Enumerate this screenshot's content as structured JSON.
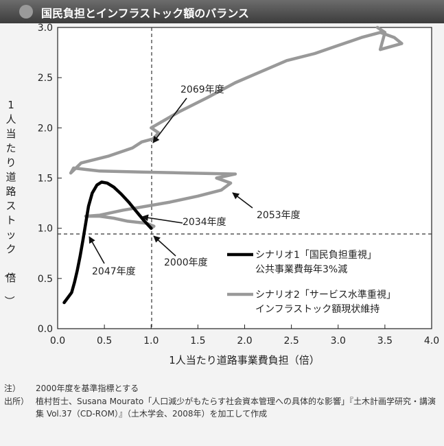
{
  "header": {
    "title": "国民負担とインフラストック額のバランス"
  },
  "chart_data": {
    "type": "line",
    "xlabel": "1人当たり道路事業費負担（倍）",
    "ylabel": "1人当たり道路ストック（倍）",
    "xlim": [
      0.0,
      4.0
    ],
    "ylim": [
      0.0,
      3.0
    ],
    "xticks": [
      "0.0",
      "0.5",
      "1.0",
      "1.5",
      "2.0",
      "2.5",
      "3.0",
      "3.5",
      "4.0"
    ],
    "yticks": [
      "0.0",
      "0.5",
      "1.0",
      "1.5",
      "2.0",
      "2.5",
      "3.0"
    ],
    "grid": false,
    "reference_lines": {
      "x": 1.0,
      "y": 1.0
    },
    "legend_placement": "lower-right",
    "series": [
      {
        "name": "シナリオ1「国民負担重視」\n公共事業費毎年3%減",
        "color": "#000000",
        "x": [
          1.0,
          0.92,
          0.84,
          0.76,
          0.68,
          0.6,
          0.53,
          0.47,
          0.42,
          0.37,
          0.33,
          0.3,
          0.27,
          0.24,
          0.21,
          0.18,
          0.15,
          0.11,
          0.07
        ],
        "y": [
          1.0,
          1.08,
          1.17,
          1.26,
          1.34,
          1.41,
          1.45,
          1.46,
          1.43,
          1.35,
          1.22,
          1.05,
          0.88,
          0.72,
          0.58,
          0.46,
          0.36,
          0.31,
          0.26
        ]
      },
      {
        "name": "シナリオ2「サービス水準重視」\nインフラストック額現状維持",
        "color": "#999999",
        "x": [
          1.0,
          1.03,
          0.95,
          0.75,
          0.6,
          0.45,
          0.3,
          0.45,
          0.7,
          0.95,
          1.2,
          1.5,
          1.75,
          1.85,
          1.7,
          1.9,
          1.4,
          0.9,
          0.45,
          0.17,
          0.14,
          0.25,
          0.55,
          0.8,
          0.9,
          1.02,
          1.08,
          1.0,
          1.3,
          1.6,
          1.9,
          2.2,
          2.45,
          2.75,
          3.0,
          3.25,
          3.45,
          3.6,
          3.68,
          3.45,
          3.5,
          3.42
        ],
        "y": [
          1.0,
          1.02,
          1.05,
          1.07,
          1.1,
          1.12,
          1.12,
          1.13,
          1.18,
          1.22,
          1.26,
          1.32,
          1.38,
          1.45,
          1.5,
          1.54,
          1.55,
          1.56,
          1.57,
          1.6,
          1.55,
          1.65,
          1.72,
          1.8,
          1.86,
          1.89,
          1.95,
          2.0,
          2.16,
          2.3,
          2.45,
          2.57,
          2.67,
          2.74,
          2.82,
          2.9,
          2.95,
          2.9,
          2.84,
          2.78,
          2.95,
          3.0
        ]
      }
    ],
    "annotations": [
      {
        "text": "2069年度",
        "x": 0.93,
        "y": 1.89
      },
      {
        "text": "2053年度",
        "x": 1.85,
        "y": 1.45
      },
      {
        "text": "2034年度",
        "x": 1.0,
        "y": 1.0
      },
      {
        "text": "2000年度",
        "x": 1.0,
        "y": 1.0
      },
      {
        "text": "2047年度",
        "x": 0.33,
        "y": 1.0
      }
    ]
  },
  "notes": {
    "note_label": "注）",
    "note_text": "2000年度を基準指標とする",
    "source_label": "出所）",
    "source_text": "植村哲士、Susana Mourato「人口減少がもたらす社会資本管理への具体的な影響」『土木計画学研究・講演集 Vol.37（CD-ROM）』（土木学会、2008年）を加工して作成"
  }
}
